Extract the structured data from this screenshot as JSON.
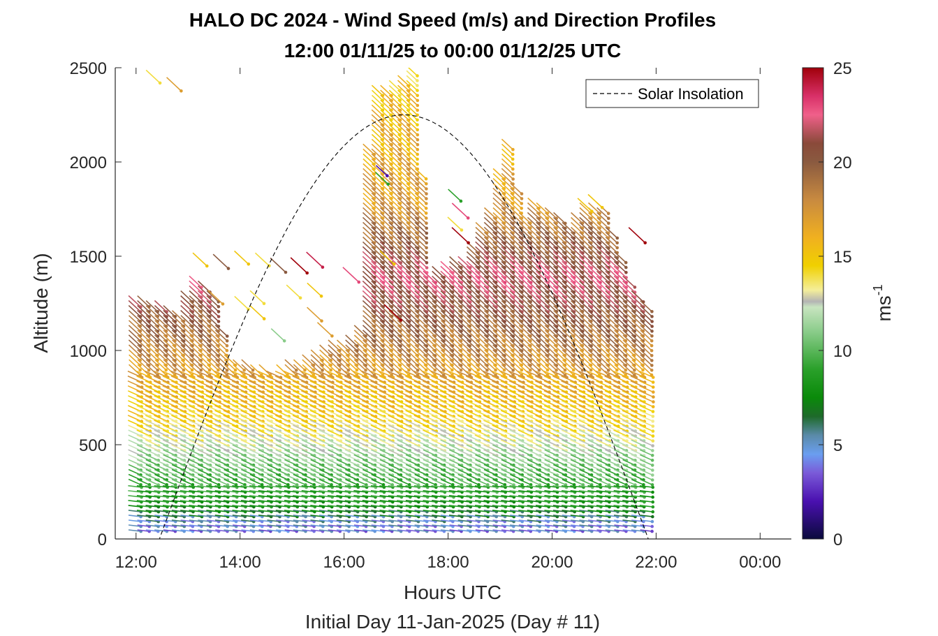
{
  "chart_data": {
    "type": "scatter",
    "title_line1": "HALO DC 2024 - Wind Speed (m/s) and Direction Profiles",
    "title_line2": "12:00 01/11/25 to 00:00 01/12/25  UTC",
    "xlabel": "Hours UTC",
    "xlabel2": "Initial Day 11-Jan-2025 (Day # 11)",
    "ylabel": "Altitude (m)",
    "xlim": [
      11.6,
      24.6
    ],
    "ylim": [
      0,
      2500
    ],
    "xticks": [
      {
        "value": 12,
        "label": "12:00"
      },
      {
        "value": 14,
        "label": "14:00"
      },
      {
        "value": 16,
        "label": "16:00"
      },
      {
        "value": 18,
        "label": "18:00"
      },
      {
        "value": 20,
        "label": "20:00"
      },
      {
        "value": 22,
        "label": "22:00"
      },
      {
        "value": 24,
        "label": "00:00"
      }
    ],
    "yticks": [
      {
        "value": 0,
        "label": "0"
      },
      {
        "value": 500,
        "label": "500"
      },
      {
        "value": 1000,
        "label": "1000"
      },
      {
        "value": 1500,
        "label": "1500"
      },
      {
        "value": 2000,
        "label": "2000"
      },
      {
        "value": 2500,
        "label": "2500"
      }
    ],
    "colorbar": {
      "label": "ms",
      "label_sup": "-1",
      "range": [
        0,
        25
      ],
      "ticks": [
        {
          "value": 0,
          "label": "0"
        },
        {
          "value": 5,
          "label": "5"
        },
        {
          "value": 10,
          "label": "10"
        },
        {
          "value": 15,
          "label": "15"
        },
        {
          "value": 20,
          "label": "20"
        },
        {
          "value": 25,
          "label": "25"
        }
      ],
      "stops": [
        {
          "v": 0,
          "c": "#0a0a3c"
        },
        {
          "v": 2,
          "c": "#4a10b0"
        },
        {
          "v": 3.5,
          "c": "#7a5ad8"
        },
        {
          "v": 4.5,
          "c": "#6a9ef0"
        },
        {
          "v": 5.5,
          "c": "#5a8aa8"
        },
        {
          "v": 6.5,
          "c": "#1e6a2a"
        },
        {
          "v": 7.5,
          "c": "#0a8a0a"
        },
        {
          "v": 9,
          "c": "#2aa02a"
        },
        {
          "v": 11,
          "c": "#8acc8a"
        },
        {
          "v": 12.3,
          "c": "#c8e4c0"
        },
        {
          "v": 12.6,
          "c": "#b4b4b4"
        },
        {
          "v": 13.2,
          "c": "#f4ee9a"
        },
        {
          "v": 14.5,
          "c": "#f0d000"
        },
        {
          "v": 16,
          "c": "#f0b020"
        },
        {
          "v": 18,
          "c": "#c88a40"
        },
        {
          "v": 20,
          "c": "#8a5a40"
        },
        {
          "v": 21,
          "c": "#8a4a3a"
        },
        {
          "v": 22.5,
          "c": "#f0608a"
        },
        {
          "v": 23.5,
          "c": "#d83068"
        },
        {
          "v": 25,
          "c": "#a0000a"
        }
      ]
    },
    "legend": {
      "position": "top-right",
      "entries": [
        {
          "label": "Solar Insolation",
          "style": "dashed",
          "color": "#000000"
        }
      ]
    },
    "series": [
      {
        "name": "Solar Insolation",
        "kind": "line",
        "sunrise_hour": 12.45,
        "sunset_hour": 21.85,
        "peak_altitude": 2250,
        "x_range": [
          11.6,
          24.6
        ]
      },
      {
        "kind": "wind-profiles",
        "time_start": 11.95,
        "time_end": 21.8,
        "time_step": 0.1667,
        "altitude_start": 45,
        "altitude_step": 26,
        "tops": [
          [
            11.95,
            1280
          ],
          [
            12.45,
            1260
          ],
          [
            12.8,
            1200
          ],
          [
            13.1,
            1400
          ],
          [
            13.5,
            1300
          ],
          [
            13.7,
            980
          ],
          [
            14.1,
            940
          ],
          [
            14.6,
            900
          ],
          [
            15.0,
            940
          ],
          [
            15.5,
            1000
          ],
          [
            16.0,
            1060
          ],
          [
            16.3,
            1120
          ],
          [
            16.5,
            2400
          ],
          [
            16.9,
            2400
          ],
          [
            17.3,
            2500
          ],
          [
            17.6,
            1400
          ],
          [
            18.0,
            1480
          ],
          [
            18.3,
            1500
          ],
          [
            18.5,
            1600
          ],
          [
            18.8,
            1750
          ],
          [
            19.1,
            2150
          ],
          [
            19.4,
            1700
          ],
          [
            19.6,
            1800
          ],
          [
            19.9,
            1750
          ],
          [
            20.3,
            1680
          ],
          [
            20.6,
            1760
          ],
          [
            20.9,
            1800
          ],
          [
            21.2,
            1600
          ],
          [
            21.5,
            1340
          ],
          [
            21.8,
            1260
          ]
        ],
        "speed_profile": [
          [
            0,
            3.5
          ],
          [
            100,
            5
          ],
          [
            170,
            8
          ],
          [
            400,
            10.5
          ],
          [
            520,
            12.5
          ],
          [
            650,
            14.5
          ],
          [
            900,
            17
          ],
          [
            1150,
            19.5
          ],
          [
            1400,
            22
          ],
          [
            1800,
            17
          ],
          [
            2300,
            15.5
          ],
          [
            2500,
            14.5
          ]
        ]
      },
      {
        "kind": "isolated-barbs",
        "points": [
          [
            12.3,
            2460,
            14
          ],
          [
            12.7,
            2420,
            17
          ],
          [
            13.2,
            1490,
            15
          ],
          [
            13.6,
            1480,
            20
          ],
          [
            14.0,
            1500,
            15
          ],
          [
            14.4,
            1490,
            14
          ],
          [
            14.7,
            1460,
            20
          ],
          [
            15.1,
            1460,
            25
          ],
          [
            15.4,
            1490,
            24
          ],
          [
            13.5,
            1290,
            17
          ],
          [
            14.0,
            1260,
            14
          ],
          [
            14.3,
            1290,
            14
          ],
          [
            14.3,
            1210,
            15
          ],
          [
            15.0,
            1320,
            14
          ],
          [
            15.4,
            1330,
            15
          ],
          [
            15.4,
            1200,
            17
          ],
          [
            15.6,
            1120,
            17
          ],
          [
            14.7,
            1090,
            11
          ],
          [
            16.1,
            1410,
            23
          ],
          [
            16.8,
            1500,
            15
          ],
          [
            16.9,
            1210,
            25
          ],
          [
            16.7,
            1960,
            2
          ],
          [
            16.7,
            1920,
            9
          ],
          [
            18.1,
            1830,
            9
          ],
          [
            18.2,
            1750,
            23
          ],
          [
            18.1,
            1680,
            14
          ],
          [
            18.2,
            1620,
            25
          ],
          [
            21.6,
            1620,
            25
          ],
          [
            20.8,
            1800,
            15
          ],
          [
            20.6,
            1780,
            15
          ]
        ]
      }
    ]
  }
}
